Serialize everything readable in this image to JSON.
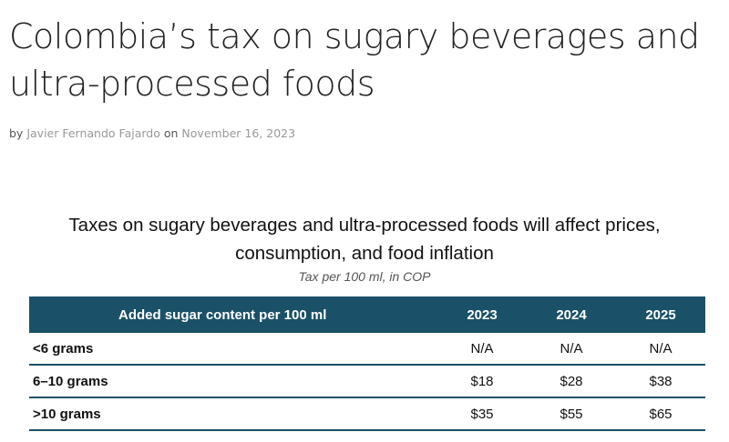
{
  "article": {
    "title": "Colombia’s tax on sugary beverages and ultra-processed foods",
    "byline_prefix": "by",
    "author": "Javier Fernando Fajardo",
    "byline_on": "on",
    "date": "November 16, 2023"
  },
  "figure": {
    "title_line1": "Taxes on sugary beverages and ultra-processed foods will affect prices,",
    "title_line2": "consumption, and food inflation",
    "subtitle": "Tax per 100 ml, in COP"
  },
  "table": {
    "headers": [
      "Added sugar content per 100 ml",
      "2023",
      "2024",
      "2025"
    ],
    "rows": [
      {
        "label": "<6 grams",
        "values": [
          "N/A",
          "N/A",
          "N/A"
        ]
      },
      {
        "label": "6–10 grams",
        "values": [
          "$18",
          "$28",
          "$38"
        ]
      },
      {
        "label": ">10 grams",
        "values": [
          "$35",
          "$55",
          "$65"
        ]
      }
    ]
  },
  "colors": {
    "header_bg": "#1a5168",
    "row_rule": "#1a5168"
  }
}
